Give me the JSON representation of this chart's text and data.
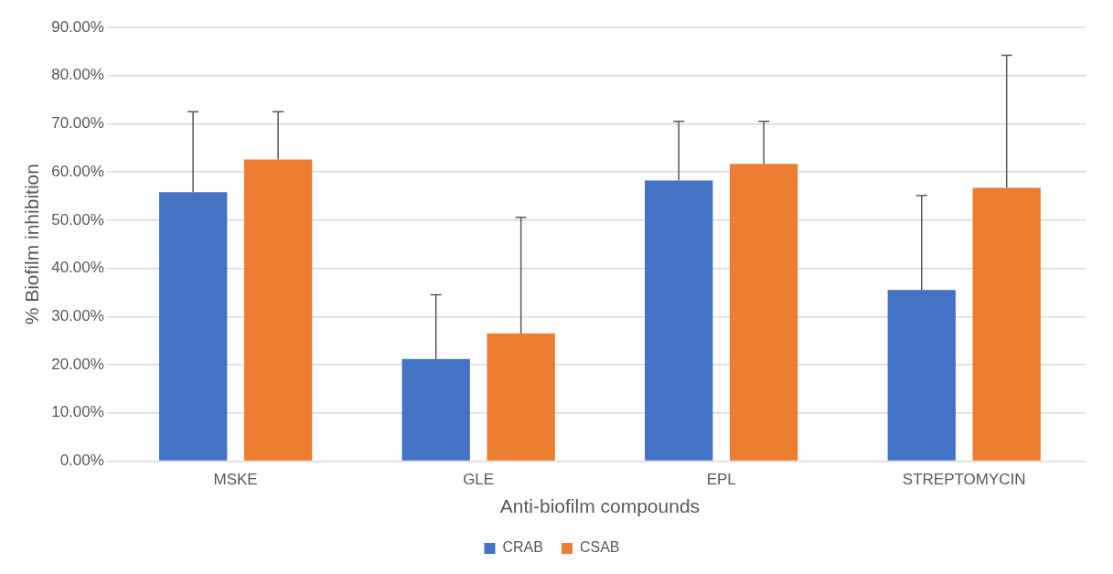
{
  "chart_data": {
    "type": "bar",
    "xlabel": "Anti-biofilm compounds",
    "ylabel": "% Biofilm inhibition",
    "categories": [
      "MSKE",
      "GLE",
      "EPL",
      "STREPTOMYCIN"
    ],
    "series": [
      {
        "name": "CRAB",
        "color": "#4472c4",
        "values": [
          55.8,
          21.2,
          58.2,
          35.5
        ],
        "errors": [
          [
            55.8,
            72.5
          ],
          [
            21.2,
            34.5
          ],
          [
            58.2,
            70.5
          ],
          [
            35.5,
            55.1
          ]
        ]
      },
      {
        "name": "CSAB",
        "color": "#ed7d31",
        "values": [
          62.6,
          26.5,
          61.7,
          56.7
        ],
        "errors": [
          [
            62.6,
            72.5
          ],
          [
            26.5,
            50.6
          ],
          [
            61.7,
            70.5
          ],
          [
            56.7,
            84.2
          ]
        ]
      }
    ],
    "ylim": [
      0,
      90
    ],
    "yticks": [
      {
        "value": 0,
        "label": "0.00%"
      },
      {
        "value": 10,
        "label": "10.00%"
      },
      {
        "value": 20,
        "label": "20.00%"
      },
      {
        "value": 30,
        "label": "30.00%"
      },
      {
        "value": 40,
        "label": "40.00%"
      },
      {
        "value": 50,
        "label": "50.00%"
      },
      {
        "value": 60,
        "label": "60.00%"
      },
      {
        "value": 70,
        "label": "70.00%"
      },
      {
        "value": 80,
        "label": "80.00%"
      },
      {
        "value": 90,
        "label": "90.00%"
      }
    ],
    "grid": "y",
    "legend": "bottom"
  }
}
